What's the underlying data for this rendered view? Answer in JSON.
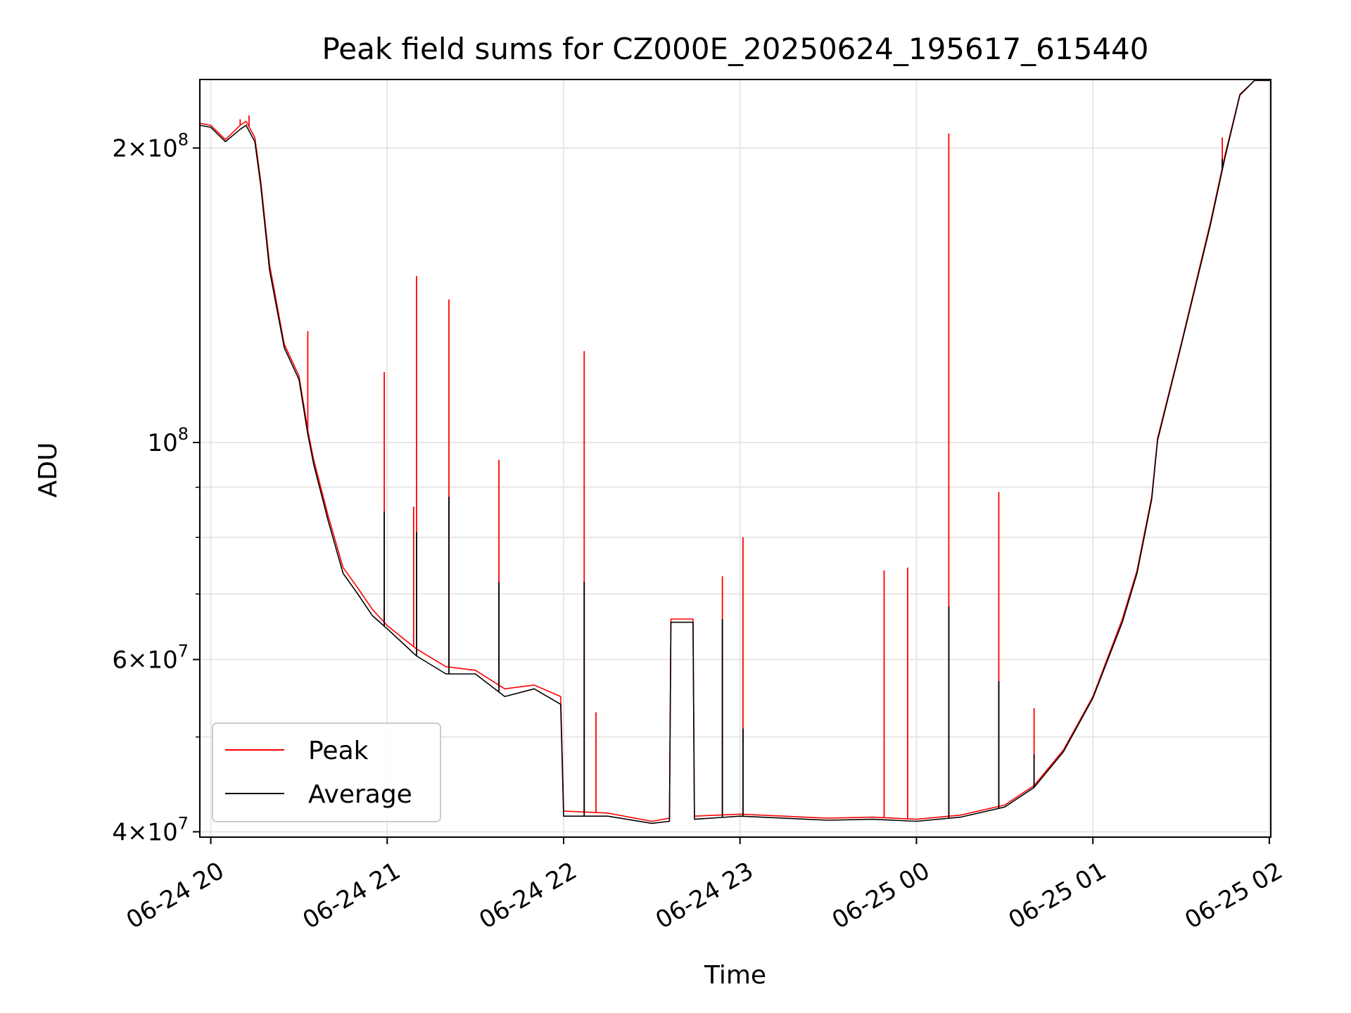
{
  "chart_data": {
    "type": "line",
    "title": "Peak field sums for CZ000E_20250624_195617_615440",
    "xlabel": "Time",
    "ylabel": "ADU",
    "y_scale": "log",
    "ylim": [
      39500000,
      235000000
    ],
    "xlim": [
      "2025-06-24T19:56:17",
      "2025-06-25T02:00:30"
    ],
    "grid": true,
    "legend_position": "lower-left",
    "x_ticks": [
      {
        "t": "2025-06-24T20:00",
        "label": "06-24 20"
      },
      {
        "t": "2025-06-24T21:00",
        "label": "06-24 21"
      },
      {
        "t": "2025-06-24T22:00",
        "label": "06-24 22"
      },
      {
        "t": "2025-06-24T23:00",
        "label": "06-24 23"
      },
      {
        "t": "2025-06-25T00:00",
        "label": "06-25 00"
      },
      {
        "t": "2025-06-25T01:00",
        "label": "06-25 01"
      },
      {
        "t": "2025-06-25T02:00",
        "label": "06-25 02"
      }
    ],
    "y_major_ticks": [
      {
        "v": 40000000,
        "base": "4",
        "exp": "7"
      },
      {
        "v": 60000000,
        "base": "6",
        "exp": "7"
      },
      {
        "v": 100000000,
        "base": "",
        "exp": "8"
      },
      {
        "v": 200000000,
        "base": "2",
        "exp": "8"
      }
    ],
    "y_minor_gridlines": [
      50000000,
      70000000,
      80000000,
      90000000
    ],
    "series": [
      {
        "name": "Peak",
        "color": "#ff0000",
        "points": [
          [
            "2025-06-24T19:56:17",
            212000000
          ],
          [
            "2025-06-24T20:00",
            211000000
          ],
          [
            "2025-06-24T20:05",
            204000000
          ],
          [
            "2025-06-24T20:10",
            211000000
          ],
          [
            "2025-06-24T20:12",
            213000000
          ],
          [
            "2025-06-24T20:15",
            205000000
          ],
          [
            "2025-06-24T20:17",
            185000000
          ],
          [
            "2025-06-24T20:20",
            152000000
          ],
          [
            "2025-06-24T20:25",
            126000000
          ],
          [
            "2025-06-24T20:30",
            117000000
          ],
          [
            "2025-06-24T20:33",
            103000000
          ],
          [
            "2025-06-24T20:35",
            96000000
          ],
          [
            "2025-06-24T20:40",
            84000000
          ],
          [
            "2025-06-24T20:45",
            74500000
          ],
          [
            "2025-06-24T20:50",
            71000000
          ],
          [
            "2025-06-24T20:55",
            67500000
          ],
          [
            "2025-06-24T21:00",
            65000000
          ],
          [
            "2025-06-24T21:10",
            61500000
          ],
          [
            "2025-06-24T21:20",
            59000000
          ],
          [
            "2025-06-24T21:30",
            58500000
          ],
          [
            "2025-06-24T21:40",
            56000000
          ],
          [
            "2025-06-24T21:50",
            56500000
          ],
          [
            "2025-06-24T21:59",
            55000000
          ],
          [
            "2025-06-24T22:00",
            42000000
          ],
          [
            "2025-06-24T22:15",
            41800000
          ],
          [
            "2025-06-24T22:30",
            41000000
          ],
          [
            "2025-06-24T22:36",
            41300000
          ],
          [
            "2025-06-24T22:36:30",
            66000000
          ],
          [
            "2025-06-24T22:44",
            66000000
          ],
          [
            "2025-06-24T22:44:30",
            41500000
          ],
          [
            "2025-06-24T23:00",
            41700000
          ],
          [
            "2025-06-24T23:30",
            41300000
          ],
          [
            "2025-06-24T23:45",
            41400000
          ],
          [
            "2025-06-25T00:00",
            41200000
          ],
          [
            "2025-06-25T00:15",
            41600000
          ],
          [
            "2025-06-25T00:30",
            42600000
          ],
          [
            "2025-06-25T00:40",
            44600000
          ],
          [
            "2025-06-25T00:50",
            48500000
          ],
          [
            "2025-06-25T01:00",
            55000000
          ],
          [
            "2025-06-25T01:10",
            66000000
          ],
          [
            "2025-06-25T01:15",
            74000000
          ],
          [
            "2025-06-25T01:20",
            88000000
          ],
          [
            "2025-06-25T01:22",
            101000000
          ],
          [
            "2025-06-25T01:30",
            126000000
          ],
          [
            "2025-06-25T01:40",
            168000000
          ],
          [
            "2025-06-25T01:45",
            197000000
          ],
          [
            "2025-06-25T01:50",
            227000000
          ],
          [
            "2025-06-25T01:55",
            234500000
          ],
          [
            "2025-06-25T02:00:30",
            234500000
          ]
        ],
        "spikes": [
          [
            "2025-06-24T20:10",
            214000000
          ],
          [
            "2025-06-24T20:13",
            216000000
          ],
          [
            "2025-06-24T20:33",
            130000000
          ],
          [
            "2025-06-24T20:59",
            118000000
          ],
          [
            "2025-06-24T21:09",
            86000000
          ],
          [
            "2025-06-24T21:10",
            148000000
          ],
          [
            "2025-06-24T21:21",
            140000000
          ],
          [
            "2025-06-24T21:38",
            96000000
          ],
          [
            "2025-06-24T22:07",
            124000000
          ],
          [
            "2025-06-24T22:11",
            53000000
          ],
          [
            "2025-06-24T22:54",
            73000000
          ],
          [
            "2025-06-24T23:01",
            80000000
          ],
          [
            "2025-06-24T23:49",
            74000000
          ],
          [
            "2025-06-24T23:57",
            74500000
          ],
          [
            "2025-06-25T00:11",
            207000000
          ],
          [
            "2025-06-25T00:28",
            89000000
          ],
          [
            "2025-06-25T00:40",
            53500000
          ],
          [
            "2025-06-25T01:44",
            205000000
          ]
        ]
      },
      {
        "name": "Average",
        "color": "#000000",
        "points": [
          [
            "2025-06-24T19:56:17",
            211000000
          ],
          [
            "2025-06-24T20:00",
            210000000
          ],
          [
            "2025-06-24T20:05",
            203000000
          ],
          [
            "2025-06-24T20:10",
            209000000
          ],
          [
            "2025-06-24T20:12",
            211000000
          ],
          [
            "2025-06-24T20:15",
            203000000
          ],
          [
            "2025-06-24T20:17",
            183000000
          ],
          [
            "2025-06-24T20:20",
            150000000
          ],
          [
            "2025-06-24T20:25",
            125000000
          ],
          [
            "2025-06-24T20:30",
            116000000
          ],
          [
            "2025-06-24T20:33",
            102000000
          ],
          [
            "2025-06-24T20:35",
            95000000
          ],
          [
            "2025-06-24T20:40",
            83000000
          ],
          [
            "2025-06-24T20:45",
            73500000
          ],
          [
            "2025-06-24T20:50",
            70000000
          ],
          [
            "2025-06-24T20:55",
            66500000
          ],
          [
            "2025-06-24T21:00",
            64500000
          ],
          [
            "2025-06-24T21:10",
            60500000
          ],
          [
            "2025-06-24T21:20",
            58000000
          ],
          [
            "2025-06-24T21:30",
            58000000
          ],
          [
            "2025-06-24T21:40",
            55000000
          ],
          [
            "2025-06-24T21:50",
            56000000
          ],
          [
            "2025-06-24T21:59",
            54000000
          ],
          [
            "2025-06-24T22:00",
            41500000
          ],
          [
            "2025-06-24T22:15",
            41500000
          ],
          [
            "2025-06-24T22:30",
            40800000
          ],
          [
            "2025-06-24T22:36",
            41000000
          ],
          [
            "2025-06-24T22:36:30",
            65500000
          ],
          [
            "2025-06-24T22:44",
            65500000
          ],
          [
            "2025-06-24T22:44:30",
            41200000
          ],
          [
            "2025-06-24T23:00",
            41500000
          ],
          [
            "2025-06-24T23:30",
            41100000
          ],
          [
            "2025-06-24T23:45",
            41200000
          ],
          [
            "2025-06-25T00:00",
            41000000
          ],
          [
            "2025-06-25T00:15",
            41400000
          ],
          [
            "2025-06-25T00:30",
            42400000
          ],
          [
            "2025-06-25T00:40",
            44400000
          ],
          [
            "2025-06-25T00:50",
            48300000
          ],
          [
            "2025-06-25T01:00",
            54800000
          ],
          [
            "2025-06-25T01:10",
            65500000
          ],
          [
            "2025-06-25T01:15",
            73500000
          ],
          [
            "2025-06-25T01:20",
            87500000
          ],
          [
            "2025-06-25T01:22",
            100500000
          ],
          [
            "2025-06-25T01:30",
            125500000
          ],
          [
            "2025-06-25T01:40",
            167000000
          ],
          [
            "2025-06-25T01:45",
            196000000
          ],
          [
            "2025-06-25T01:50",
            226500000
          ],
          [
            "2025-06-25T01:55",
            234500000
          ],
          [
            "2025-06-25T02:00:30",
            234500000
          ]
        ],
        "spikes": [
          [
            "2025-06-24T20:59",
            85000000
          ],
          [
            "2025-06-24T21:10",
            81000000
          ],
          [
            "2025-06-24T21:21",
            88000000
          ],
          [
            "2025-06-24T21:38",
            72000000
          ],
          [
            "2025-06-24T22:07",
            72000000
          ],
          [
            "2025-06-24T22:54",
            66000000
          ],
          [
            "2025-06-24T23:01",
            51000000
          ],
          [
            "2025-06-25T00:11",
            68000000
          ],
          [
            "2025-06-25T00:28",
            57000000
          ],
          [
            "2025-06-25T00:40",
            48000000
          ],
          [
            "2025-06-25T01:44",
            195000000
          ]
        ]
      }
    ]
  }
}
